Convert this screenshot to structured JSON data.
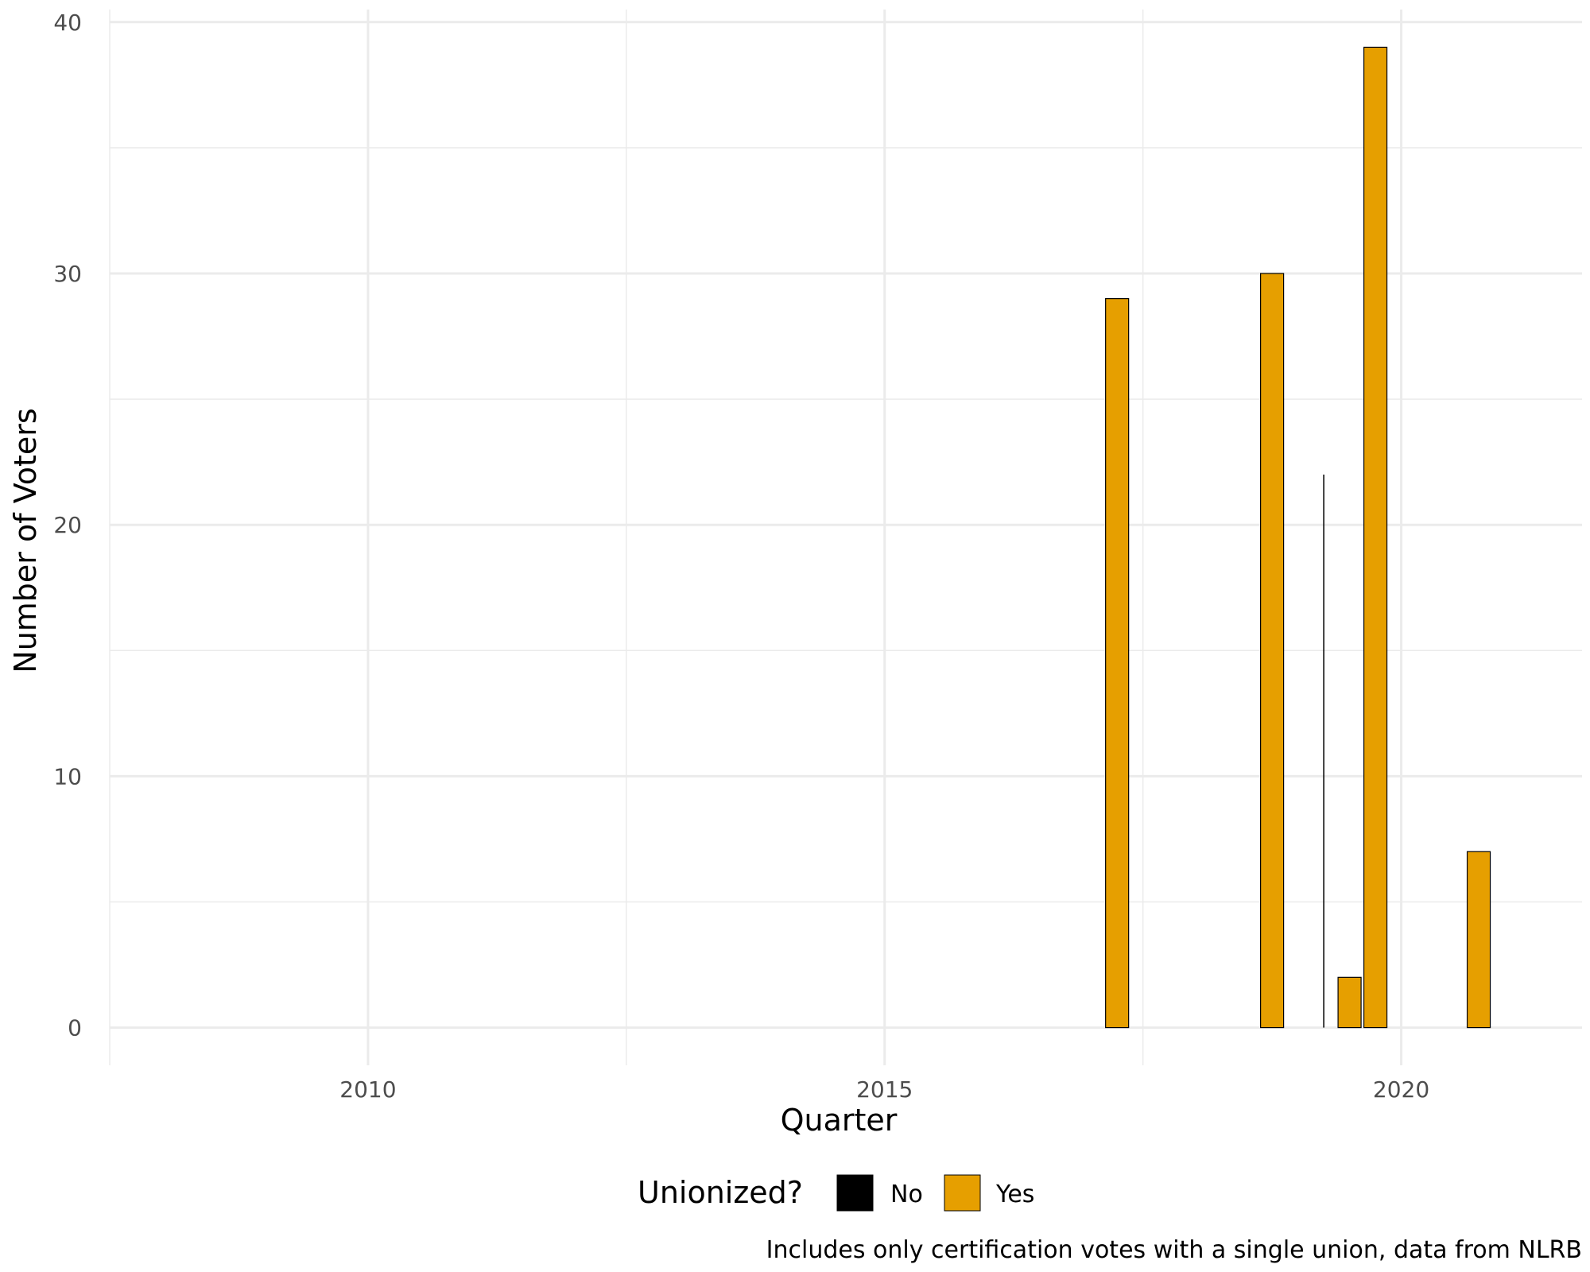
{
  "chart_data": {
    "type": "bar",
    "title": "",
    "xlabel": "Quarter",
    "ylabel": "Number of Voters",
    "caption": "Includes only certification votes with a single union, data from NLRB",
    "xlim": [
      2007.5,
      2021.75
    ],
    "ylim": [
      -1.5,
      40.5
    ],
    "x_ticks": [
      2010,
      2015,
      2020
    ],
    "y_ticks": [
      0,
      10,
      20,
      30,
      40
    ],
    "grid": true,
    "legend": {
      "title": "Unionized?",
      "position": "bottom",
      "entries": [
        {
          "label": "No",
          "color": "#000000"
        },
        {
          "label": "Yes",
          "color": "#E69F00"
        }
      ]
    },
    "series": [
      {
        "name": "No",
        "color": "#000000",
        "points": [
          {
            "x": 2019.25,
            "y": 22
          }
        ]
      },
      {
        "name": "Yes",
        "color": "#E69F00",
        "points": [
          {
            "x": 2017.25,
            "y": 29
          },
          {
            "x": 2018.75,
            "y": 30
          },
          {
            "x": 2019.5,
            "y": 2
          },
          {
            "x": 2019.75,
            "y": 39
          },
          {
            "x": 2020.75,
            "y": 7
          }
        ]
      }
    ]
  }
}
